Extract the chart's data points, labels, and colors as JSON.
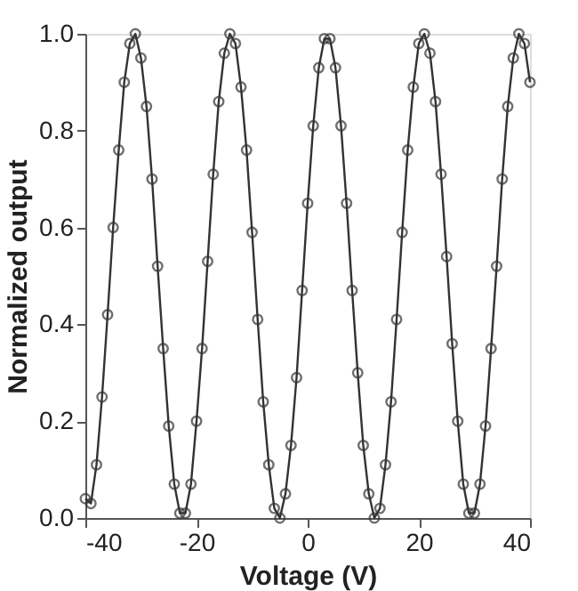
{
  "chart_data": {
    "type": "line",
    "xlabel": "Voltage (V)",
    "ylabel": "Normalized output",
    "x": [
      -40,
      -39,
      -38,
      -37,
      -36,
      -35,
      -34,
      -33,
      -32,
      -31,
      -30,
      -29,
      -28,
      -27,
      -26,
      -25,
      -24,
      -23,
      -22,
      -21,
      -20,
      -19,
      -18,
      -17,
      -16,
      -15,
      -14,
      -13,
      -12,
      -11,
      -10,
      -9,
      -8,
      -7,
      -6,
      -5,
      -4,
      -3,
      -2,
      -1,
      0,
      1,
      2,
      3,
      4,
      5,
      6,
      7,
      8,
      9,
      10,
      11,
      12,
      13,
      14,
      15,
      16,
      17,
      18,
      19,
      20,
      21,
      22,
      23,
      24,
      25,
      26,
      27,
      28,
      29,
      30,
      31,
      32,
      33,
      34,
      35,
      36,
      37,
      38,
      39,
      40
    ],
    "series": [
      {
        "color": "#333333",
        "values": [
          0.04,
          0.03,
          0.11,
          0.25,
          0.42,
          0.6,
          0.76,
          0.9,
          0.98,
          1.0,
          0.95,
          0.85,
          0.7,
          0.52,
          0.35,
          0.19,
          0.07,
          0.01,
          0.01,
          0.07,
          0.2,
          0.35,
          0.53,
          0.71,
          0.86,
          0.96,
          1.0,
          0.98,
          0.89,
          0.76,
          0.59,
          0.41,
          0.24,
          0.11,
          0.02,
          0.0,
          0.05,
          0.15,
          0.29,
          0.47,
          0.65,
          0.81,
          0.93,
          0.99,
          0.99,
          0.93,
          0.81,
          0.65,
          0.47,
          0.3,
          0.15,
          0.05,
          0.0,
          0.02,
          0.11,
          0.24,
          0.41,
          0.59,
          0.76,
          0.89,
          0.98,
          1.0,
          0.96,
          0.86,
          0.71,
          0.54,
          0.36,
          0.2,
          0.07,
          0.01,
          0.01,
          0.07,
          0.19,
          0.35,
          0.52,
          0.7,
          0.85,
          0.95,
          1.0,
          0.98,
          0.9
        ]
      }
    ],
    "xlim": [
      -40,
      40
    ],
    "xticks": [
      -40,
      -20,
      0,
      20,
      40
    ],
    "ylim": [
      0,
      1
    ],
    "yticks": [
      {
        "value": 0,
        "label": "0.0"
      },
      {
        "value": 0.2,
        "label": "0.2"
      },
      {
        "value": 0.4,
        "label": "0.4"
      },
      {
        "value": 0.6,
        "label": "0.6"
      },
      {
        "value": 0.8,
        "label": "0.8"
      },
      {
        "value": 1,
        "label": "1.0"
      }
    ],
    "grid": false,
    "marker": "circle",
    "line_style": "solid"
  }
}
